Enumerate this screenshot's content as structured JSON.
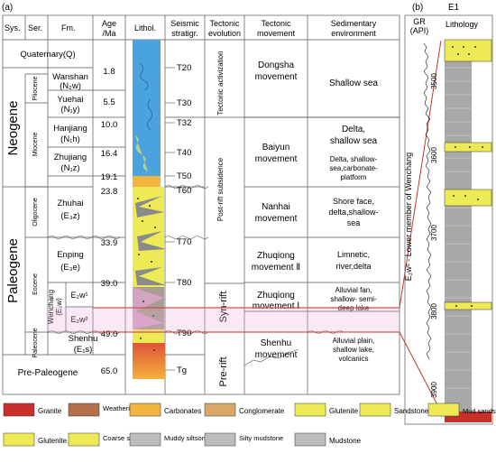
{
  "panel_labels": {
    "a": "(a)",
    "b": "(b)"
  },
  "header": {
    "sys": "Sys.",
    "ser": "Ser.",
    "fm": "Fm.",
    "age_1": "Age",
    "age_2": "/Ma",
    "lithol": "Lithol.",
    "seis_1": "Seismic",
    "seis_2": "stratigr.",
    "tecevo_1": "Tectonic",
    "tecevo_2": "evolution",
    "tecmov_1": "Tectonic",
    "tecmov_2": "movement",
    "sed_1": "Sedimentary",
    "sed_2": "environment"
  },
  "systems": {
    "quaternary": "Quaternary(Q)",
    "neogene": "Neogene",
    "paleogene": "Paleogene",
    "prepaleogene": "Pre-Paleogene"
  },
  "series": {
    "pliocene": "Pliocene",
    "miocene": "Miocene",
    "oligocene": "Oligocene",
    "eocene": "Eocene",
    "paleocene": "Paleocene"
  },
  "formations": {
    "wanshan": {
      "name": "Wanshan",
      "code": "(N₂w)"
    },
    "yuehai": {
      "name": "Yuehai",
      "code": "(N₁y)"
    },
    "hanjiang": {
      "name": "Hanjiang",
      "code": "(N₁h)"
    },
    "zhujiang": {
      "name": "Zhujiang",
      "code": "(N₁z)"
    },
    "zhuhai": {
      "name": "Zhuhai",
      "code": "(E₃z)"
    },
    "enping": {
      "name": "Enping",
      "code": "(E₃e)"
    },
    "wenchang": {
      "name": "Wenchang",
      "code": "(E₂w)"
    },
    "wenchang_upper": "E₂w¹",
    "wenchang_lower": "E₂w²",
    "shenhu": {
      "name": "Shenhu",
      "code": "(E₁s)"
    }
  },
  "ages": [
    "1.8",
    "5.5",
    "10.0",
    "16.4",
    "19.1",
    "23.8",
    "33.9",
    "39.0",
    "49.0",
    "65.0"
  ],
  "seismic": [
    "T20",
    "T30",
    "T32",
    "T40",
    "T50",
    "T60",
    "T70",
    "T80",
    "T90",
    "Tg"
  ],
  "tectonic_evolution": {
    "activization": "Tectonic activization",
    "postrift": "Post-rift subsidence",
    "synrift": "Syn-rift",
    "prerift": "Pre-rift"
  },
  "tectonic_movement": {
    "dongsha": [
      "Dongsha",
      "movement"
    ],
    "baiyun": [
      "Baiyun",
      "movement"
    ],
    "nanhai": [
      "Nanhai",
      "movement"
    ],
    "zhuqiong2": [
      "Zhuqiong",
      "movement Ⅱ"
    ],
    "zhuqiong1": [
      "Zhuqiong",
      "movement Ⅰ"
    ],
    "shenhu": [
      "Shenhu",
      "movement"
    ]
  },
  "sedimentary_env": {
    "shallow_sea": [
      "Shallow sea"
    ],
    "delta": [
      "Delta,",
      "shallow sea"
    ],
    "delta_carb": [
      "Delta, shallow-",
      "sea,carbonate-",
      "platform"
    ],
    "shoreface": [
      "Shore face,",
      "delta,shallow-",
      "sea"
    ],
    "limnetic": [
      "Limnetic,",
      "river,delta"
    ],
    "alluvial_fan": [
      "Alluvial fan,",
      "shallow- semi-",
      "deep lake"
    ],
    "alluvial_plain": [
      "Alluvial plain,",
      "shallow lake,",
      "volcanics"
    ]
  },
  "log": {
    "gr_title": "GR",
    "gr_unit": "(API)",
    "interval": "E₂w² - Lower member of Wenchang",
    "well": "E1",
    "lithology": "Lithology",
    "depths": [
      "3500",
      "3600",
      "3700",
      "3800",
      "3900"
    ]
  },
  "legend": [
    {
      "label": "Granite",
      "color": "#c9302c"
    },
    {
      "label": "Weathering crust",
      "color": "#b5704a"
    },
    {
      "label": "Carbonates",
      "color": "#f2b640"
    },
    {
      "label": "Conglomerate",
      "color": "#d9a766"
    },
    {
      "label": "Glutenite",
      "color": "#eeea55"
    },
    {
      "label": "Sandstone",
      "color": "#eeea55"
    },
    {
      "label": "Mud sandstone",
      "color": "#eeea55"
    },
    {
      "label": "Glutenite",
      "color": "#eeea55"
    },
    {
      "label": "Coarse sandstone",
      "color": "#eeea55"
    },
    {
      "label": "Muddy siltsone",
      "color": "#bdbdbd"
    },
    {
      "label": "Silty mudstone",
      "color": "#bdbdbd"
    },
    {
      "label": "Mudstone",
      "color": "#bdbdbd"
    }
  ],
  "colors": {
    "sea": "#4aa3df",
    "sand": "#eeea55",
    "mud": "#8a8a8a",
    "granite": "#c9302c",
    "pink": "#e8a7d8",
    "redline": "#c0392b",
    "grid": "#555555"
  }
}
